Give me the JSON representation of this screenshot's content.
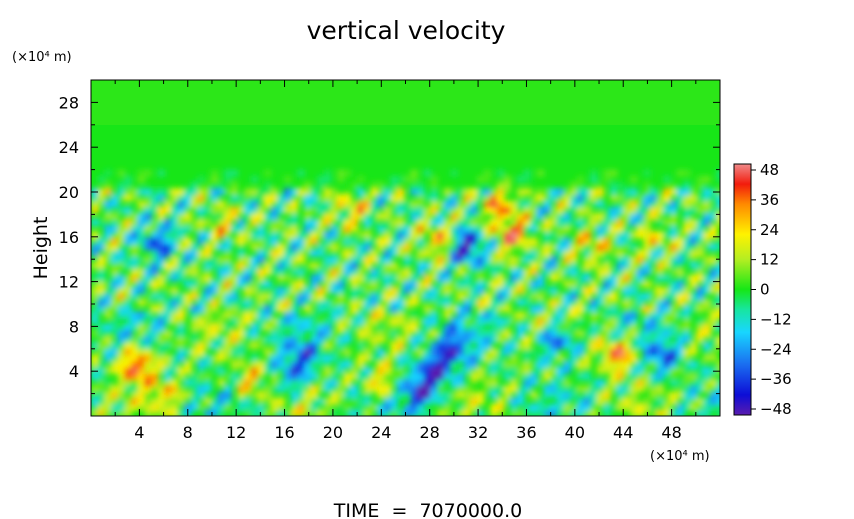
{
  "chart_data": {
    "type": "heatmap",
    "title": "vertical velocity",
    "ylabel": "Height",
    "y_unit": "(×10⁴ m)",
    "x_unit": "(×10⁴ m)",
    "footer": "TIME  =  7070000.0",
    "xlim": [
      0,
      52
    ],
    "ylim": [
      0,
      30
    ],
    "x_ticks": [
      "4",
      "8",
      "12",
      "16",
      "20",
      "24",
      "28",
      "32",
      "36",
      "40",
      "44",
      "48"
    ],
    "y_ticks": [
      "4",
      "8",
      "12",
      "16",
      "20",
      "24",
      "28"
    ],
    "colorbar": {
      "range": [
        -48,
        48
      ],
      "ticks": [
        "48",
        "36",
        "24",
        "12",
        "0",
        "−12",
        "−24",
        "−36",
        "−48"
      ]
    },
    "features": [
      {
        "x": 3.8,
        "y": 4.6,
        "v": 42
      },
      {
        "x": 43.5,
        "y": 5.6,
        "v": 38
      },
      {
        "x": 28.5,
        "y": 4.2,
        "v": -42
      },
      {
        "x": 27.2,
        "y": 2.2,
        "v": -38
      },
      {
        "x": 30.0,
        "y": 6.2,
        "v": -32
      },
      {
        "x": 17.5,
        "y": 5.4,
        "v": -28
      },
      {
        "x": 16.5,
        "y": 3.5,
        "v": -22
      },
      {
        "x": 47.2,
        "y": 5.5,
        "v": -30
      },
      {
        "x": 38.5,
        "y": 6.8,
        "v": -34
      },
      {
        "x": 24.0,
        "y": 3.0,
        "v": 24
      },
      {
        "x": 13.2,
        "y": 3.2,
        "v": 22
      },
      {
        "x": 6.2,
        "y": 2.0,
        "v": 20
      },
      {
        "x": 31.0,
        "y": 15.2,
        "v": -45
      },
      {
        "x": 34.8,
        "y": 16.2,
        "v": 34
      },
      {
        "x": 33.8,
        "y": 18.8,
        "v": 28
      },
      {
        "x": 28.8,
        "y": 15.8,
        "v": 28
      },
      {
        "x": 5.5,
        "y": 15.5,
        "v": -30
      },
      {
        "x": 21.5,
        "y": 18.5,
        "v": 20
      },
      {
        "x": 41.5,
        "y": 15.2,
        "v": 20
      },
      {
        "x": 46.5,
        "y": 15.8,
        "v": 16
      },
      {
        "x": 11.0,
        "y": 17.2,
        "v": 16
      }
    ]
  }
}
